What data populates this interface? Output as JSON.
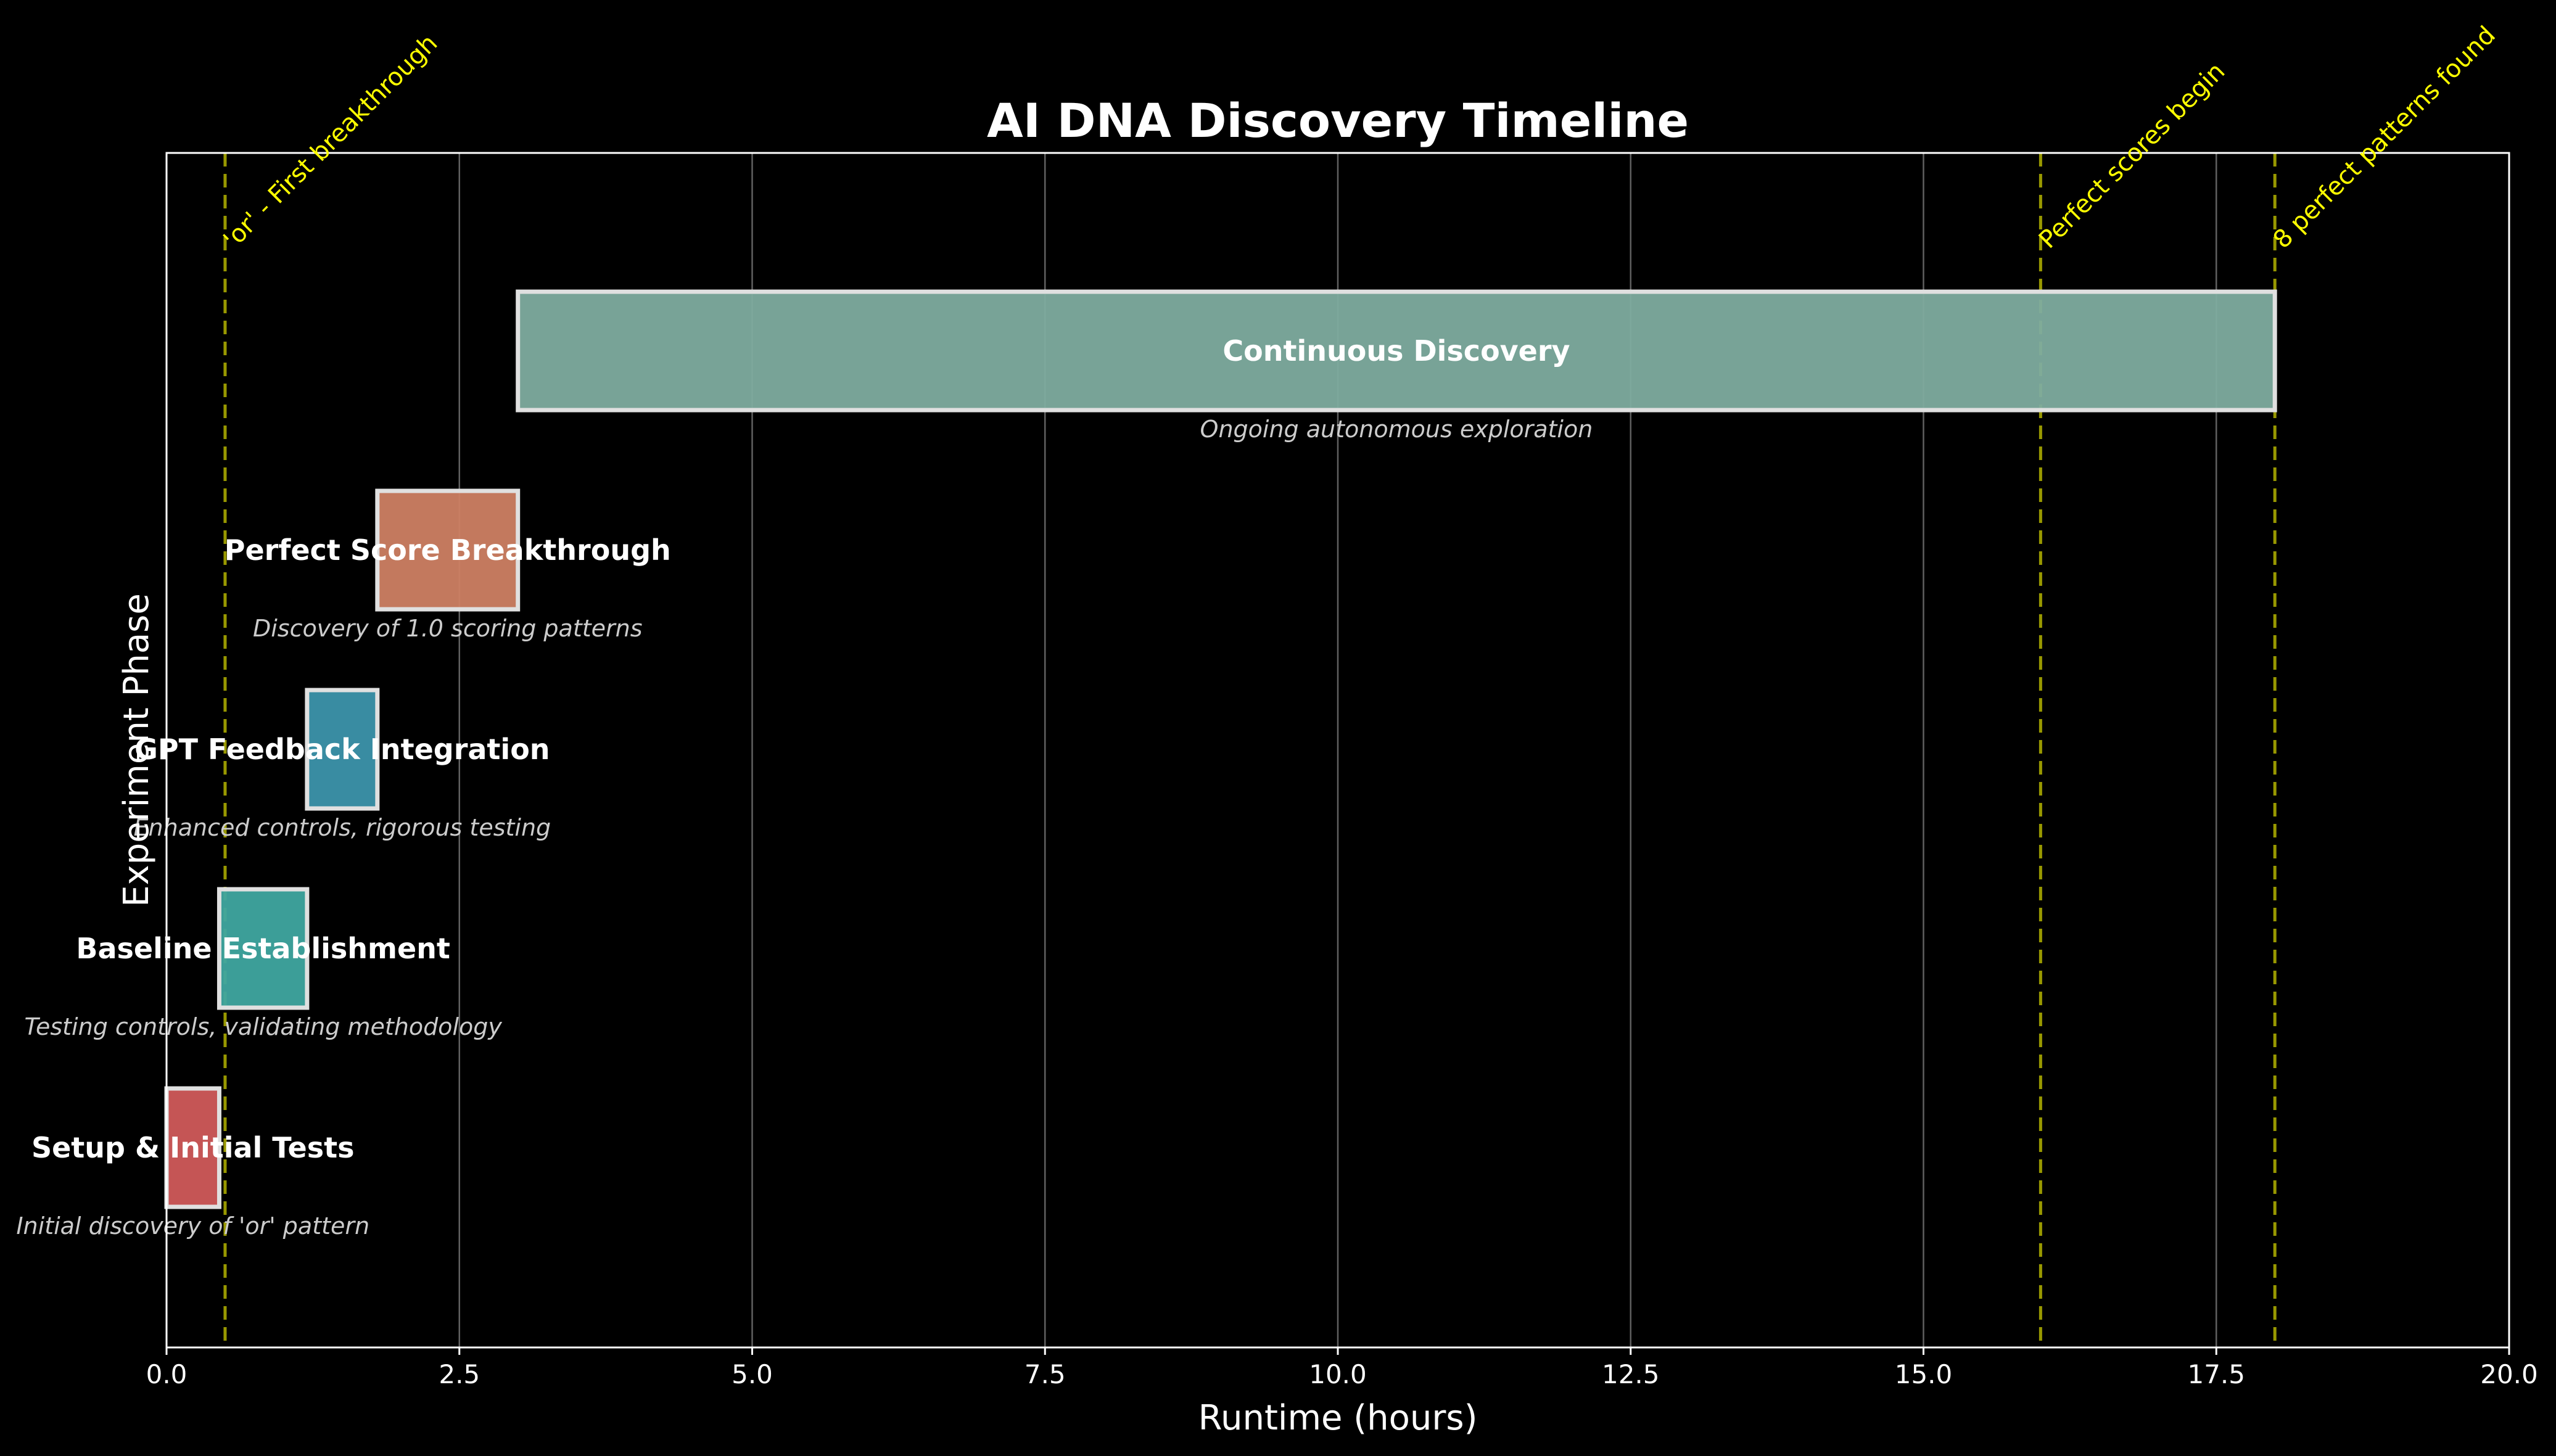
{
  "chart_data": {
    "type": "bar",
    "orientation": "horizontal",
    "title": "AI DNA Discovery Timeline",
    "xlabel": "Runtime (hours)",
    "ylabel": "Experiment Phase",
    "xlim": [
      0,
      20
    ],
    "x_ticks": [
      "0.0",
      "2.5",
      "5.0",
      "7.5",
      "10.0",
      "12.5",
      "15.0",
      "17.5",
      "20.0"
    ],
    "grid": "vertical",
    "phases": [
      {
        "label": "Setup & Initial Tests",
        "description": "Initial discovery of 'or' pattern",
        "start": 0.0,
        "end": 0.45,
        "color": "#d05a5a"
      },
      {
        "label": "Baseline Establishment",
        "description": "Testing controls, validating methodology",
        "start": 0.45,
        "end": 1.2,
        "color": "#3fa6a0"
      },
      {
        "label": "GPT Feedback Integration",
        "description": "Enhanced controls, rigorous testing",
        "start": 1.2,
        "end": 1.8,
        "color": "#3c94ab"
      },
      {
        "label": "Perfect Score Breakthrough",
        "description": "Discovery of 1.0 scoring patterns",
        "start": 1.8,
        "end": 3.0,
        "color": "#cd7f63"
      },
      {
        "label": "Continuous Discovery",
        "description": "Ongoing autonomous exploration",
        "start": 3.0,
        "end": 18.0,
        "color": "#7eac9f"
      }
    ],
    "milestones": [
      {
        "x": 0.5,
        "label": "'or' - First breakthrough"
      },
      {
        "x": 16.0,
        "label": "Perfect scores begin"
      },
      {
        "x": 18.0,
        "label": "8 perfect patterns found"
      }
    ]
  },
  "colors": {
    "background": "#000000",
    "text": "#ffffff",
    "description_text": "#cccccc",
    "grid": "#808080",
    "milestone": "#ffff00",
    "milestone_line": "#b3b300",
    "bar_edge": "#e0e0e0",
    "frame": "#ffffff"
  }
}
